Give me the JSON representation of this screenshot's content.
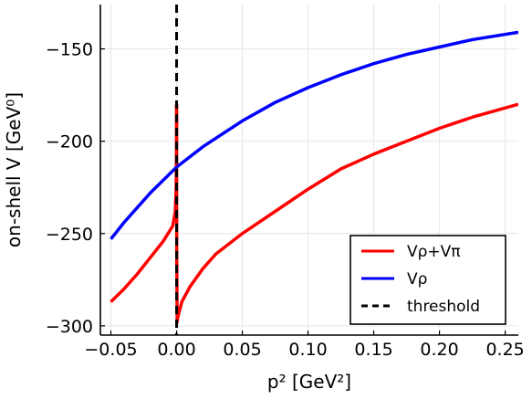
{
  "chart_data": {
    "type": "line",
    "xlabel": "p² [GeV²]",
    "ylabel": "on-shell V [GeV⁰]",
    "xlim": [
      -0.058,
      0.26
    ],
    "ylim": [
      -305,
      -126
    ],
    "x_ticks": [
      {
        "value": -0.05,
        "label": "−0.05"
      },
      {
        "value": 0.0,
        "label": "0.00"
      },
      {
        "value": 0.05,
        "label": "0.05"
      },
      {
        "value": 0.1,
        "label": "0.10"
      },
      {
        "value": 0.15,
        "label": "0.15"
      },
      {
        "value": 0.2,
        "label": "0.20"
      },
      {
        "value": 0.25,
        "label": "0.25"
      }
    ],
    "y_ticks": [
      {
        "value": -150,
        "label": "−150"
      },
      {
        "value": -200,
        "label": "−200"
      },
      {
        "value": -250,
        "label": "−250"
      },
      {
        "value": -300,
        "label": "−300"
      }
    ],
    "grid": true,
    "legend_position": "bottom-right",
    "series": [
      {
        "name": "Vρ+Vπ",
        "color": "#ff0000",
        "segments": [
          [
            [
              -0.05,
              -287
            ],
            [
              -0.04,
              -280
            ],
            [
              -0.03,
              -272
            ],
            [
              -0.02,
              -263
            ],
            [
              -0.01,
              -254
            ],
            [
              -0.003,
              -246
            ],
            [
              -0.001,
              -238
            ],
            [
              -0.0004,
              -226
            ],
            [
              -0.0001,
              -205
            ],
            [
              0.0,
              -180
            ]
          ],
          [
            [
              0.0,
              -180
            ],
            [
              0.0001,
              -260
            ],
            [
              0.0004,
              -298
            ],
            [
              0.001,
              -295
            ],
            [
              0.004,
              -287
            ],
            [
              0.01,
              -279
            ],
            [
              0.02,
              -269
            ],
            [
              0.03,
              -261
            ],
            [
              0.05,
              -250
            ],
            [
              0.075,
              -238
            ],
            [
              0.1,
              -226
            ],
            [
              0.125,
              -215
            ],
            [
              0.15,
              -207
            ],
            [
              0.175,
              -200
            ],
            [
              0.2,
              -193
            ],
            [
              0.225,
              -187
            ],
            [
              0.26,
              -180
            ]
          ]
        ]
      },
      {
        "name": "Vρ",
        "color": "#0000ff",
        "segments": [
          [
            [
              -0.05,
              -253
            ],
            [
              -0.04,
              -244
            ],
            [
              -0.03,
              -236
            ],
            [
              -0.02,
              -228
            ],
            [
              -0.01,
              -221
            ],
            [
              0.0,
              -214
            ],
            [
              0.02,
              -203
            ],
            [
              0.05,
              -189
            ],
            [
              0.075,
              -179
            ],
            [
              0.1,
              -171
            ],
            [
              0.125,
              -164
            ],
            [
              0.15,
              -158
            ],
            [
              0.175,
              -153
            ],
            [
              0.2,
              -149
            ],
            [
              0.225,
              -145
            ],
            [
              0.26,
              -141
            ]
          ]
        ]
      },
      {
        "name": "threshold",
        "color": "#000000",
        "dashed": true,
        "vertical_x": 0.0
      }
    ]
  }
}
